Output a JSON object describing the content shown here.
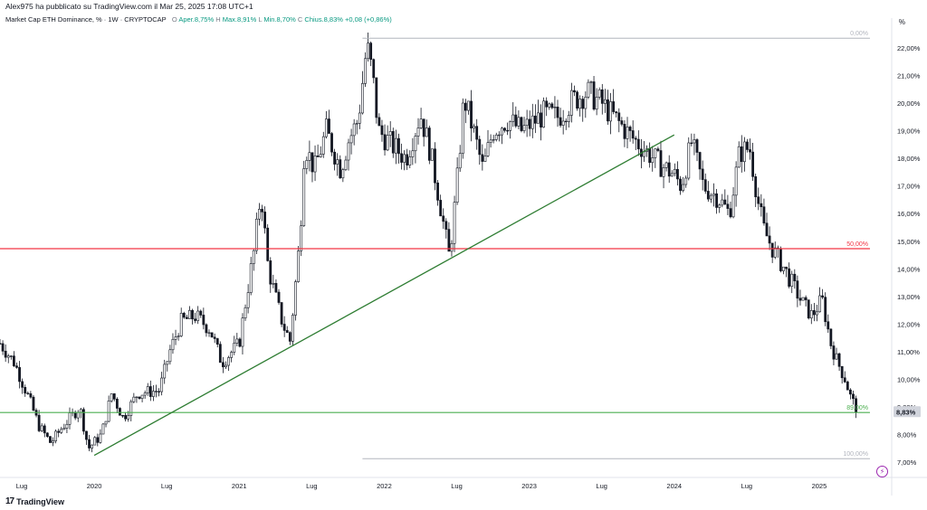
{
  "header": {
    "text": "Alex975 ha pubblicato su TradingView.com il Mar 25, 2025 17:08 UTC+1"
  },
  "legend": {
    "symbol": "Market Cap ETH Dominance, % · 1W · CRYPTOCAP",
    "open_label": "O",
    "open_value": "Aper.8,75%",
    "high_label": "H",
    "high_value": "Max.8,91%",
    "low_label": "L",
    "low_value": "Min.8,70%",
    "close_label": "C",
    "close_value": "Chius.8,83%",
    "change_value": "+0,08 (+0,86%)"
  },
  "unit": "%",
  "brand": {
    "logo": "17",
    "name": "TradingView"
  },
  "colors": {
    "candle": "#131722",
    "trendline": "#2e7d32",
    "fib_50": "#f23645",
    "fib_89": "#4caf50",
    "fib_0": "#b2b5be",
    "price_tag_bg": "#d1d4dc"
  },
  "chart_data": {
    "type": "candlestick",
    "timeframe": "1W",
    "x_ticks": [
      "Lug",
      "2020",
      "Lug",
      "2021",
      "Lug",
      "2022",
      "Lug",
      "2023",
      "Lug",
      "2024",
      "Lug",
      "2025"
    ],
    "y_ticks": [
      "22,00%",
      "21,00%",
      "20,00%",
      "19,00%",
      "18,00%",
      "17,00%",
      "16,00%",
      "15,00%",
      "14,00%",
      "13,00%",
      "12,00%",
      "11,00%",
      "10,00%",
      "9,00%",
      "8,00%",
      "7,00%"
    ],
    "y_tick_values": [
      22,
      21,
      20,
      19,
      18,
      17,
      16,
      15,
      14,
      13,
      12,
      11,
      10,
      9,
      8,
      7
    ],
    "ylim": [
      6.45,
      22.75
    ],
    "x_range_years": [
      2019.35,
      2025.5
    ],
    "last_price_label": "8,83%",
    "last_price": 8.83,
    "fib_levels": [
      {
        "label": "0,00%",
        "value": 22.35,
        "x_start": 2021.85,
        "x_end": 2025.35
      },
      {
        "label": "50,00%",
        "value": 14.73,
        "x_start": 2021.85,
        "x_end": 2025.35
      },
      {
        "label": "89,00%",
        "value": 8.8,
        "x_start": 2021.85,
        "x_end": 2025.35
      },
      {
        "label": "100,00%",
        "value": 7.13,
        "x_start": 2021.85,
        "x_end": 2025.35
      }
    ],
    "trendline": {
      "x1": 2020.0,
      "y1": 7.25,
      "x2": 2024.0,
      "y2": 18.85
    },
    "price_path": [
      [
        2019.35,
        11.3
      ],
      [
        2019.45,
        10.6
      ],
      [
        2019.55,
        9.3
      ],
      [
        2019.62,
        8.3
      ],
      [
        2019.7,
        7.7
      ],
      [
        2019.8,
        8.4
      ],
      [
        2019.9,
        9.0
      ],
      [
        2019.96,
        7.5
      ],
      [
        2020.05,
        8.0
      ],
      [
        2020.12,
        9.5
      ],
      [
        2020.2,
        8.6
      ],
      [
        2020.3,
        9.5
      ],
      [
        2020.45,
        9.6
      ],
      [
        2020.52,
        11.0
      ],
      [
        2020.6,
        12.1
      ],
      [
        2020.7,
        12.3
      ],
      [
        2020.8,
        11.8
      ],
      [
        2020.88,
        10.6
      ],
      [
        2021.0,
        11.3
      ],
      [
        2021.05,
        13.0
      ],
      [
        2021.1,
        14.6
      ],
      [
        2021.15,
        16.8
      ],
      [
        2021.2,
        14.0
      ],
      [
        2021.3,
        12.0
      ],
      [
        2021.35,
        11.4
      ],
      [
        2021.42,
        15.2
      ],
      [
        2021.45,
        18.5
      ],
      [
        2021.52,
        17.6
      ],
      [
        2021.6,
        19.0
      ],
      [
        2021.7,
        17.6
      ],
      [
        2021.75,
        18.6
      ],
      [
        2021.82,
        19.4
      ],
      [
        2021.88,
        22.1
      ],
      [
        2021.92,
        21.0
      ],
      [
        2021.96,
        19.0
      ],
      [
        2022.05,
        18.5
      ],
      [
        2022.15,
        18.0
      ],
      [
        2022.25,
        19.6
      ],
      [
        2022.32,
        18.2
      ],
      [
        2022.38,
        16.5
      ],
      [
        2022.45,
        14.4
      ],
      [
        2022.5,
        17.0
      ],
      [
        2022.55,
        20.2
      ],
      [
        2022.62,
        18.9
      ],
      [
        2022.68,
        17.6
      ],
      [
        2022.75,
        19.0
      ],
      [
        2022.85,
        19.4
      ],
      [
        2022.95,
        19.0
      ],
      [
        2023.1,
        19.6
      ],
      [
        2023.2,
        19.5
      ],
      [
        2023.3,
        20.1
      ],
      [
        2023.4,
        20.4
      ],
      [
        2023.5,
        20.0
      ],
      [
        2023.6,
        19.4
      ],
      [
        2023.7,
        18.8
      ],
      [
        2023.8,
        18.3
      ],
      [
        2023.9,
        17.8
      ],
      [
        2024.0,
        17.4
      ],
      [
        2024.05,
        17.0
      ],
      [
        2024.12,
        18.6
      ],
      [
        2024.2,
        17.0
      ],
      [
        2024.3,
        16.6
      ],
      [
        2024.38,
        16.0
      ],
      [
        2024.45,
        18.2
      ],
      [
        2024.52,
        18.4
      ],
      [
        2024.58,
        16.4
      ],
      [
        2024.62,
        15.4
      ],
      [
        2024.68,
        14.7
      ],
      [
        2024.75,
        14.1
      ],
      [
        2024.82,
        13.4
      ],
      [
        2024.88,
        12.8
      ],
      [
        2024.95,
        12.3
      ],
      [
        2025.02,
        12.9
      ],
      [
        2025.08,
        11.3
      ],
      [
        2025.12,
        10.7
      ],
      [
        2025.18,
        10.0
      ],
      [
        2025.22,
        9.3
      ],
      [
        2025.27,
        8.83
      ]
    ]
  }
}
